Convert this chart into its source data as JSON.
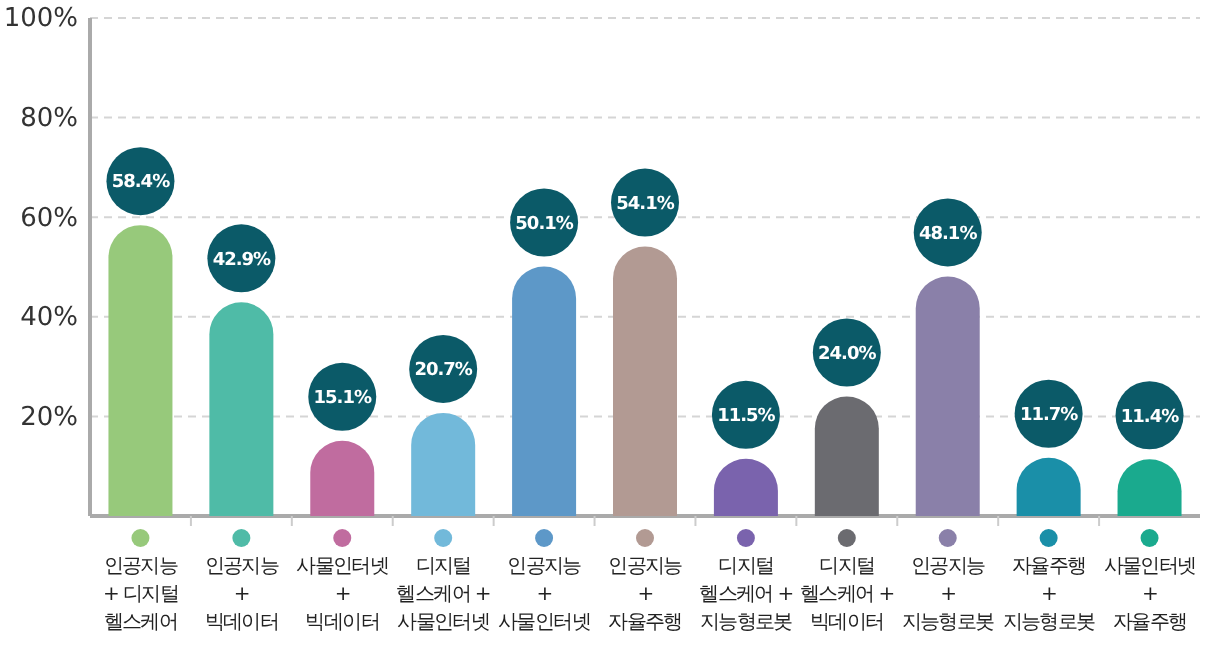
{
  "chart_data": {
    "type": "bar",
    "categories": [
      "인공지능\n+ 디지털\n헬스케어",
      "인공지능\n+\n빅데이터",
      "사물인터넷\n+\n빅데이터",
      "디지털\n헬스케어 +\n사물인터넷",
      "인공지능\n+\n사물인터넷",
      "인공지능\n+\n자율주행",
      "디지털\n헬스케어 +\n지능형로봇",
      "디지털\n헬스케어 +\n빅데이터",
      "인공지능\n+\n지능형로봇",
      "자율주행\n+\n지능형로봇",
      "사물인터넷\n+\n자율주행"
    ],
    "values": [
      58.4,
      42.9,
      15.1,
      20.7,
      50.1,
      54.1,
      11.5,
      24.0,
      48.1,
      11.7,
      11.4
    ],
    "value_labels": [
      "58.4%",
      "42.9%",
      "15.1%",
      "20.7%",
      "50.1%",
      "54.1%",
      "11.5%",
      "24.0%",
      "48.1%",
      "11.7%",
      "11.4%"
    ],
    "colors": [
      "#97c97b",
      "#4fbba7",
      "#c06c9f",
      "#72b9da",
      "#5d98c8",
      "#b29a93",
      "#7a63ad",
      "#6b6b70",
      "#8a80a9",
      "#1a8fa8",
      "#1aaa8e"
    ],
    "ylim": [
      0,
      100
    ],
    "yticks": [
      {
        "value": 20,
        "label": "20%"
      },
      {
        "value": 40,
        "label": "40%"
      },
      {
        "value": 60,
        "label": "60%"
      },
      {
        "value": 80,
        "label": "80%"
      },
      {
        "value": 100,
        "label": "100%"
      }
    ],
    "grid": "y"
  }
}
